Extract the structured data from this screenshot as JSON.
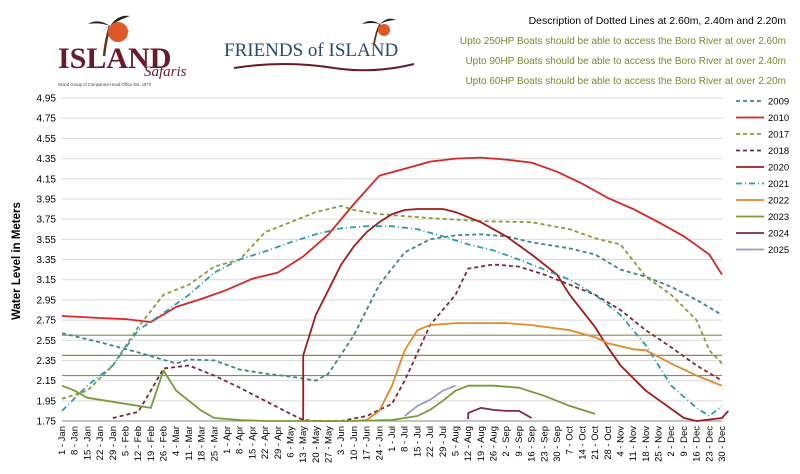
{
  "logos": {
    "island_name": "ISLAND",
    "island_sub": "Safaris",
    "island_tagline": "Island Group of Companies Head Office Est. 1973",
    "friends_text": "FRIENDS of ISLAND"
  },
  "description": {
    "title": "Description of Dotted  Lines at 2.60m, 2.40m and 2.20m",
    "lines": [
      "Upto 250HP Boats should be able to access the Boro River at over 2.60m",
      "Upto 90HP Boats should be able to access the Boro River at over 2.40m",
      "Upto 60HP Boats should be able to access the Boro River at over 2.20m"
    ]
  },
  "colors": {
    "desc_green": "#7a8a2e",
    "grid": "#d9d9d9",
    "ref_lines": "#8a8a55"
  },
  "chart_data": {
    "type": "line",
    "ylabel": "Water Level in Meters",
    "xlabel": "",
    "ylim": [
      1.75,
      4.95
    ],
    "yticks": [
      "1.75",
      "1.95",
      "2.15",
      "2.35",
      "2.55",
      "2.75",
      "2.95",
      "3.15",
      "3.35",
      "3.55",
      "3.75",
      "3.95",
      "4.15",
      "4.35",
      "4.55",
      "4.75",
      "4.95"
    ],
    "reference_lines": [
      2.6,
      2.4,
      2.2
    ],
    "legend_position": "right",
    "x_labels": [
      "1 - Jan",
      "8 - Jan",
      "15 - Jan",
      "22 - Jan",
      "29 - Jan",
      "5 - Feb",
      "12 - Feb",
      "19 - Feb",
      "26 - Feb",
      "4 - Mar",
      "11 - Mar",
      "18 - Mar",
      "25 - Mar",
      "1 - Apr",
      "8 - Apr",
      "15 - Apr",
      "22 - Apr",
      "29 - Apr",
      "6 - May",
      "13 - May",
      "20 - May",
      "27 - May",
      "3 - Jun",
      "10 - Jun",
      "17 - Jun",
      "24 - Jun",
      "1 - Jul",
      "8 - Jul",
      "15 - Jul",
      "22 - Jul",
      "29 - Jul",
      "5 - Aug",
      "12 - Aug",
      "19 - Aug",
      "26 - Aug",
      "2 - Sep",
      "9 - Sep",
      "16 - Sep",
      "23 - Sep",
      "30 - Sep",
      "7 - Oct",
      "14 - Oct",
      "21 - Oct",
      "28 - Oct",
      "4 - Nov",
      "11 - Nov",
      "18 - Nov",
      "25 - Nov",
      "2 - Dec",
      "9 - Dec",
      "16 - Dec",
      "23 - Dec",
      "30 - Dec"
    ],
    "series": [
      {
        "name": "2009",
        "color": "#3b8686",
        "dash": "4,3",
        "points": [
          [
            0,
            2.62
          ],
          [
            3,
            2.53
          ],
          [
            6,
            2.43
          ],
          [
            9,
            2.32
          ],
          [
            10,
            2.36
          ],
          [
            12,
            2.35
          ],
          [
            14,
            2.26
          ],
          [
            16,
            2.22
          ],
          [
            18,
            2.19
          ],
          [
            20,
            2.15
          ],
          [
            21,
            2.22
          ],
          [
            23,
            2.6
          ],
          [
            25,
            3.1
          ],
          [
            27,
            3.42
          ],
          [
            29,
            3.55
          ],
          [
            31,
            3.59
          ],
          [
            33,
            3.6
          ],
          [
            35,
            3.58
          ],
          [
            37,
            3.52
          ],
          [
            40,
            3.46
          ],
          [
            42,
            3.4
          ],
          [
            44,
            3.25
          ],
          [
            46,
            3.18
          ],
          [
            48,
            3.08
          ],
          [
            50,
            2.95
          ],
          [
            52,
            2.8
          ]
        ]
      },
      {
        "name": "2010",
        "color": "#d62728",
        "dash": "",
        "points": [
          [
            0,
            2.79
          ],
          [
            3,
            2.77
          ],
          [
            5,
            2.76
          ],
          [
            7,
            2.73
          ],
          [
            9,
            2.88
          ],
          [
            11,
            2.96
          ],
          [
            13,
            3.05
          ],
          [
            15,
            3.16
          ],
          [
            17,
            3.22
          ],
          [
            19,
            3.38
          ],
          [
            21,
            3.6
          ],
          [
            23,
            3.9
          ],
          [
            25,
            4.18
          ],
          [
            27,
            4.25
          ],
          [
            29,
            4.32
          ],
          [
            31,
            4.35
          ],
          [
            33,
            4.36
          ],
          [
            35,
            4.34
          ],
          [
            37,
            4.31
          ],
          [
            39,
            4.22
          ],
          [
            41,
            4.1
          ],
          [
            43,
            3.96
          ],
          [
            45,
            3.85
          ],
          [
            47,
            3.72
          ],
          [
            49,
            3.58
          ],
          [
            51,
            3.4
          ],
          [
            52,
            3.2
          ]
        ]
      },
      {
        "name": "2017",
        "color": "#8a9a3a",
        "dash": "4,3",
        "points": [
          [
            0,
            1.97
          ],
          [
            2,
            2.05
          ],
          [
            4,
            2.3
          ],
          [
            6,
            2.68
          ],
          [
            8,
            3.0
          ],
          [
            10,
            3.1
          ],
          [
            12,
            3.28
          ],
          [
            14,
            3.35
          ],
          [
            16,
            3.62
          ],
          [
            18,
            3.72
          ],
          [
            20,
            3.82
          ],
          [
            22,
            3.88
          ],
          [
            23,
            3.84
          ],
          [
            25,
            3.8
          ],
          [
            27,
            3.78
          ],
          [
            29,
            3.76
          ],
          [
            33,
            3.73
          ],
          [
            37,
            3.72
          ],
          [
            40,
            3.65
          ],
          [
            42,
            3.56
          ],
          [
            44,
            3.5
          ],
          [
            46,
            3.18
          ],
          [
            48,
            3.0
          ],
          [
            50,
            2.75
          ],
          [
            51,
            2.45
          ],
          [
            52,
            2.32
          ]
        ]
      },
      {
        "name": "2018",
        "color": "#7a2a3a",
        "dash": "4,3",
        "points": [
          [
            4,
            1.78
          ],
          [
            6,
            1.84
          ],
          [
            7,
            2.05
          ],
          [
            8,
            2.27
          ],
          [
            10,
            2.3
          ],
          [
            12,
            2.2
          ],
          [
            14,
            2.08
          ],
          [
            16,
            1.95
          ],
          [
            18,
            1.82
          ],
          [
            19,
            1.76
          ],
          [
            20,
            1.75
          ],
          [
            22,
            1.75
          ],
          [
            24,
            1.8
          ],
          [
            26,
            1.92
          ],
          [
            27,
            2.15
          ],
          [
            29,
            2.7
          ],
          [
            31,
            3.0
          ],
          [
            32,
            3.26
          ],
          [
            34,
            3.3
          ],
          [
            36,
            3.28
          ],
          [
            38,
            3.2
          ],
          [
            40,
            3.1
          ],
          [
            42,
            3.0
          ],
          [
            44,
            2.85
          ],
          [
            46,
            2.65
          ],
          [
            48,
            2.48
          ],
          [
            50,
            2.3
          ],
          [
            52,
            2.15
          ]
        ]
      },
      {
        "name": "2020",
        "color": "#a01c1c",
        "dash": "",
        "points": [
          [
            19,
            1.75
          ],
          [
            19,
            2.4
          ],
          [
            20,
            2.8
          ],
          [
            21,
            3.05
          ],
          [
            22,
            3.3
          ],
          [
            23,
            3.48
          ],
          [
            24,
            3.62
          ],
          [
            25,
            3.72
          ],
          [
            26,
            3.8
          ],
          [
            27,
            3.84
          ],
          [
            28,
            3.85
          ],
          [
            30,
            3.85
          ],
          [
            31,
            3.82
          ],
          [
            33,
            3.72
          ],
          [
            35,
            3.58
          ],
          [
            37,
            3.4
          ],
          [
            39,
            3.2
          ],
          [
            40,
            3.0
          ],
          [
            42,
            2.68
          ],
          [
            43,
            2.48
          ],
          [
            44,
            2.3
          ],
          [
            46,
            2.05
          ],
          [
            48,
            1.87
          ],
          [
            49,
            1.78
          ],
          [
            50,
            1.75
          ],
          [
            52,
            1.78
          ],
          [
            52.5,
            1.85
          ]
        ]
      },
      {
        "name": "2021",
        "color": "#2e9bb0",
        "dash": "6,3,1,3",
        "points": [
          [
            0,
            1.85
          ],
          [
            2,
            2.1
          ],
          [
            4,
            2.3
          ],
          [
            6,
            2.65
          ],
          [
            8,
            2.82
          ],
          [
            10,
            3.0
          ],
          [
            12,
            3.22
          ],
          [
            14,
            3.35
          ],
          [
            16,
            3.43
          ],
          [
            18,
            3.52
          ],
          [
            20,
            3.6
          ],
          [
            22,
            3.66
          ],
          [
            24,
            3.68
          ],
          [
            26,
            3.68
          ],
          [
            28,
            3.65
          ],
          [
            30,
            3.58
          ],
          [
            32,
            3.5
          ],
          [
            34,
            3.44
          ],
          [
            36,
            3.35
          ],
          [
            38,
            3.25
          ],
          [
            40,
            3.15
          ],
          [
            42,
            3.0
          ],
          [
            44,
            2.8
          ],
          [
            46,
            2.5
          ],
          [
            48,
            2.1
          ],
          [
            50,
            1.88
          ],
          [
            51,
            1.8
          ],
          [
            52,
            1.9
          ]
        ]
      },
      {
        "name": "2022",
        "color": "#e08a2a",
        "dash": "",
        "points": [
          [
            23,
            1.75
          ],
          [
            24,
            1.76
          ],
          [
            25,
            1.85
          ],
          [
            26,
            2.1
          ],
          [
            27,
            2.45
          ],
          [
            28,
            2.65
          ],
          [
            29,
            2.7
          ],
          [
            31,
            2.72
          ],
          [
            33,
            2.72
          ],
          [
            35,
            2.72
          ],
          [
            37,
            2.7
          ],
          [
            40,
            2.65
          ],
          [
            42,
            2.58
          ],
          [
            43,
            2.52
          ],
          [
            45,
            2.46
          ],
          [
            46,
            2.45
          ],
          [
            48,
            2.32
          ],
          [
            50,
            2.2
          ],
          [
            52,
            2.1
          ]
        ]
      },
      {
        "name": "2023",
        "color": "#7a9a3a",
        "dash": "",
        "points": [
          [
            0,
            2.1
          ],
          [
            1,
            2.05
          ],
          [
            2,
            1.98
          ],
          [
            4,
            1.94
          ],
          [
            6,
            1.9
          ],
          [
            7,
            1.88
          ],
          [
            8,
            2.25
          ],
          [
            9,
            2.05
          ],
          [
            10,
            1.95
          ],
          [
            11,
            1.85
          ],
          [
            12,
            1.78
          ],
          [
            14,
            1.76
          ],
          [
            16,
            1.75
          ],
          [
            23,
            1.75
          ],
          [
            26,
            1.76
          ],
          [
            28,
            1.8
          ],
          [
            29,
            1.86
          ],
          [
            30,
            1.95
          ],
          [
            31,
            2.05
          ],
          [
            32,
            2.1
          ],
          [
            34,
            2.1
          ],
          [
            36,
            2.08
          ],
          [
            38,
            2.0
          ],
          [
            40,
            1.9
          ],
          [
            42,
            1.82
          ]
        ]
      },
      {
        "name": "2024",
        "color": "#7a2a4a",
        "dash": "",
        "points": [
          [
            32,
            1.77
          ],
          [
            32,
            1.83
          ],
          [
            33,
            1.88
          ],
          [
            34,
            1.86
          ],
          [
            35,
            1.85
          ],
          [
            36,
            1.85
          ],
          [
            37,
            1.78
          ]
        ]
      },
      {
        "name": "2025",
        "color": "#9b9bc8",
        "dash": "",
        "points": [
          [
            27,
            1.8
          ],
          [
            28,
            1.9
          ],
          [
            29,
            1.96
          ],
          [
            30,
            2.05
          ],
          [
            31,
            2.1
          ]
        ]
      }
    ]
  }
}
